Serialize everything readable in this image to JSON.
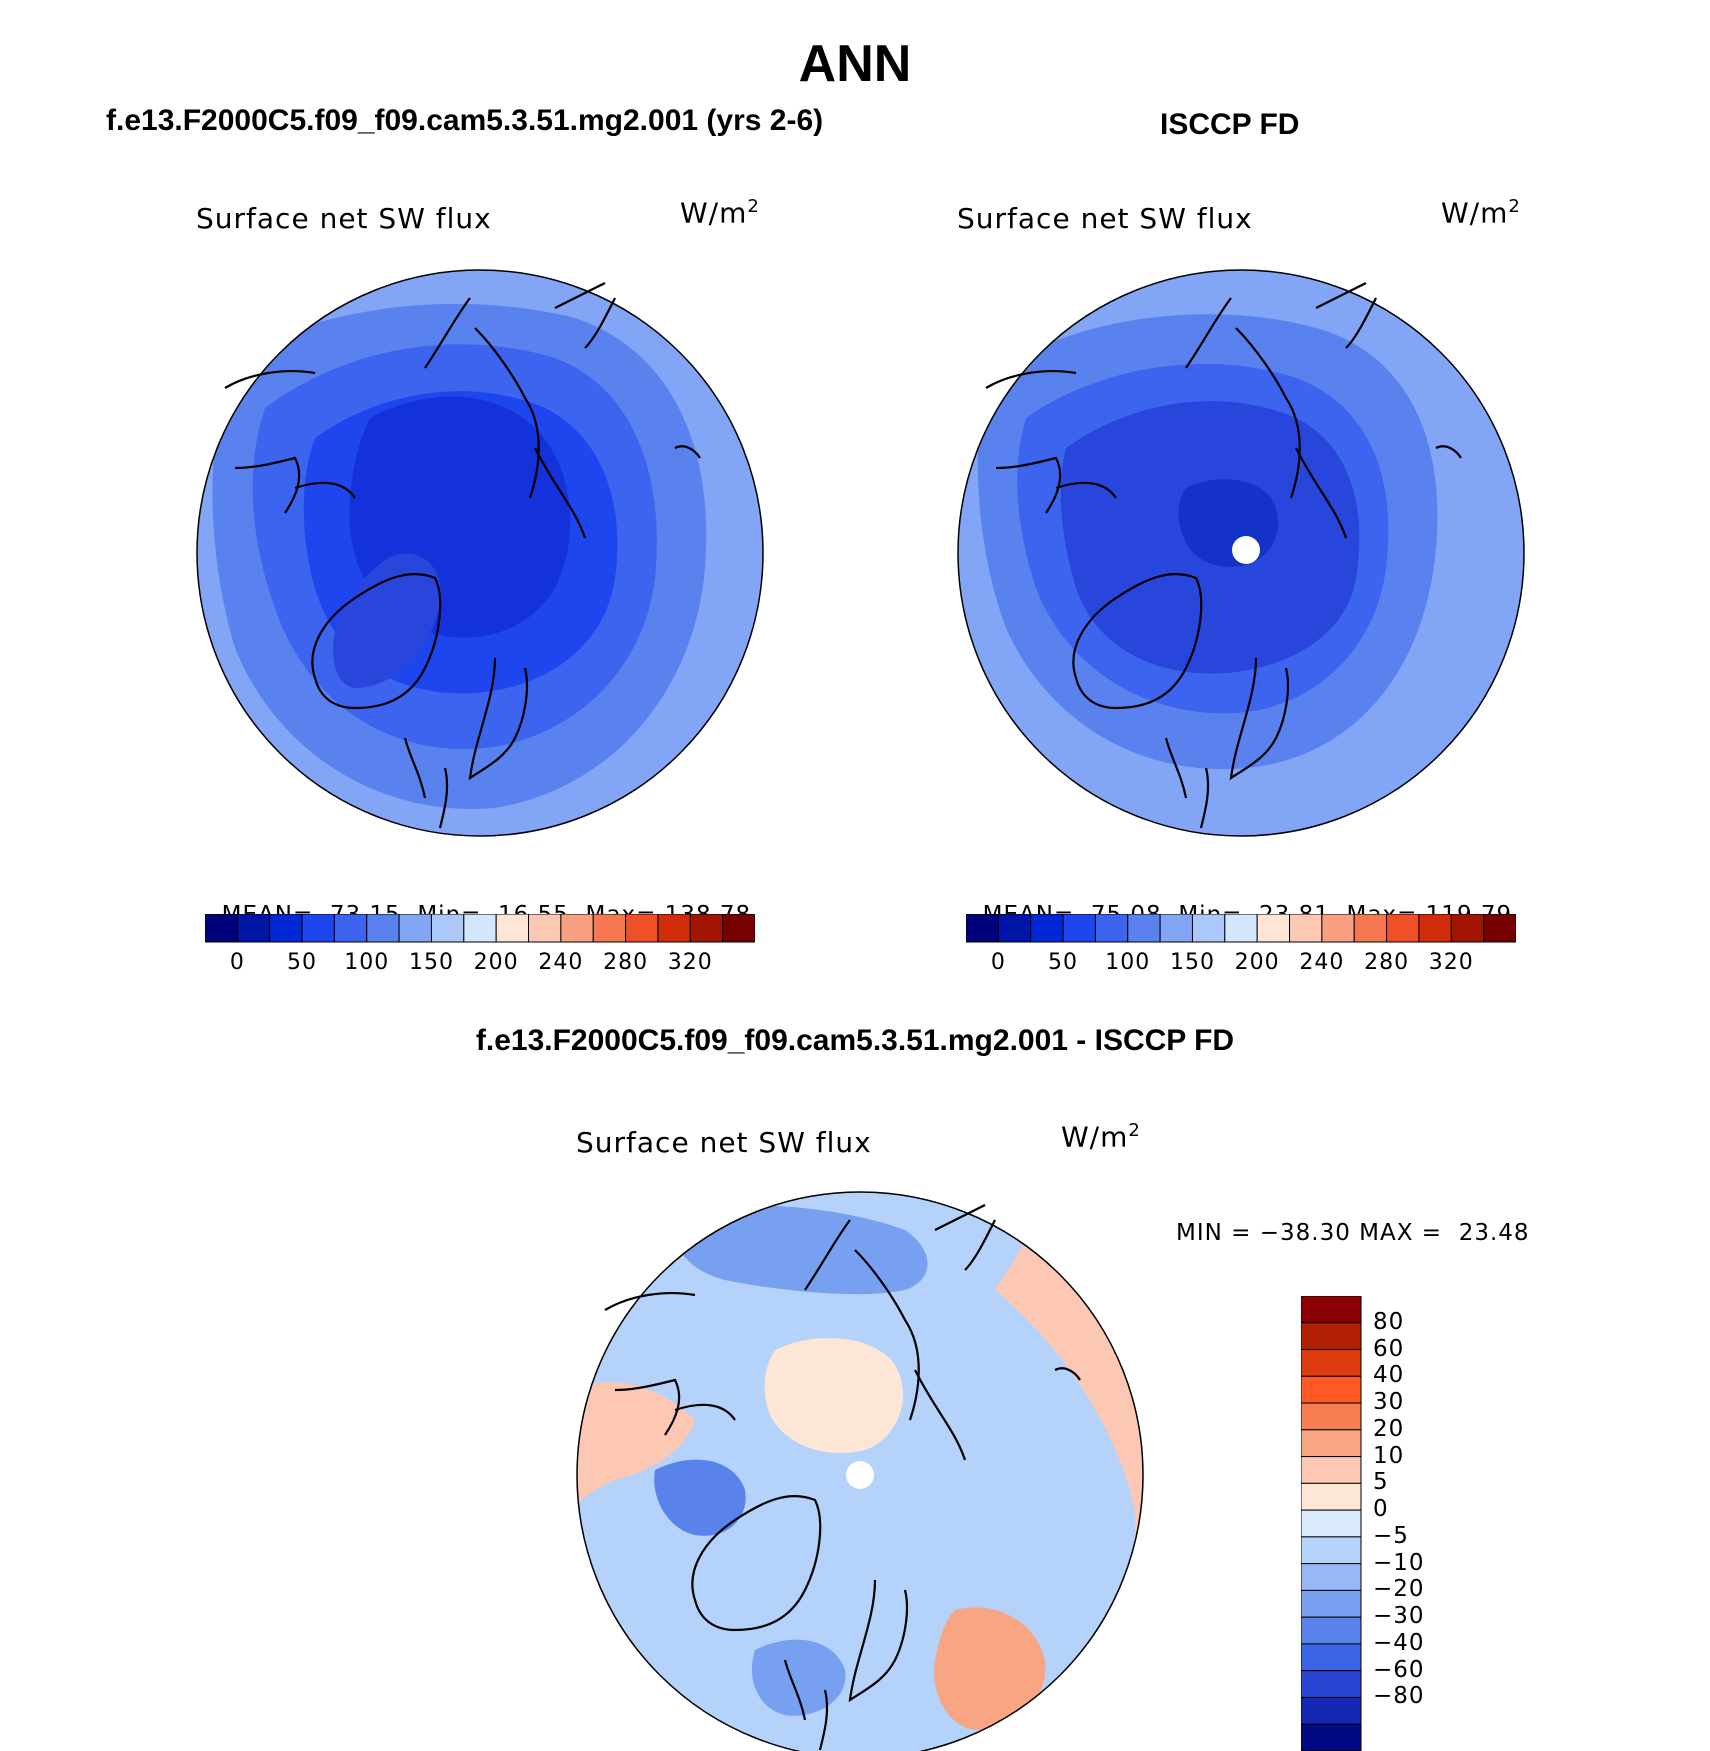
{
  "title": "ANN",
  "left_header": "f.e13.F2000C5.f09_f09.cam5.3.51.mg2.001 (yrs 2-6)",
  "right_header": "ISCCP FD",
  "diff_header": "f.e13.F2000C5.f09_f09.cam5.3.51.mg2.001 - ISCCP FD",
  "panels": {
    "model": {
      "title": "Surface net SW flux",
      "units_base": "W/m",
      "units_exp": "2",
      "stats": {
        "mean_label": "MEAN=",
        "mean": "73.15",
        "min_label": "Min=",
        "min": "16.55",
        "max_label": "Max=",
        "max": "138.78"
      }
    },
    "obs": {
      "title": "Surface net SW flux",
      "units_base": "W/m",
      "units_exp": "2",
      "stats": {
        "mean_label": "MEAN=",
        "mean": "75.08",
        "min_label": "Min=",
        "min": "23.81",
        "max_label": "Max=",
        "max": "119.79"
      }
    },
    "diff": {
      "title": "Surface net SW flux",
      "units_base": "W/m",
      "units_exp": "2",
      "minmax": "MIN = −38.30 MAX =  23.48"
    }
  },
  "colorbar_abs": {
    "colors": [
      "#00007f",
      "#0014a8",
      "#0028d4",
      "#1e46ee",
      "#3c64ee",
      "#5a82ee",
      "#82a5f5",
      "#aac8fa",
      "#d2e6fc",
      "#fde6d6",
      "#fcc8b4",
      "#faa082",
      "#f57850",
      "#f05028",
      "#d22d0a",
      "#a01400",
      "#780000"
    ],
    "tick_labels": [
      "0",
      "50",
      "100",
      "150",
      "200",
      "240",
      "280",
      "320"
    ]
  },
  "colorbar_diff": {
    "colors_top_to_bottom": [
      "#8b0000",
      "#b41e05",
      "#dc3c0f",
      "#ff5a23",
      "#f87d50",
      "#f7a582",
      "#fcc8b4",
      "#fde6d6",
      "#d8eafc",
      "#b4d2fa",
      "#96b9f5",
      "#78a0f0",
      "#5a82eb",
      "#3c64e6",
      "#2846d2",
      "#1428b4",
      "#000a82"
    ],
    "tick_labels": [
      "80",
      "60",
      "40",
      "30",
      "20",
      "10",
      "5",
      "0",
      "−5",
      "−10",
      "−20",
      "−30",
      "−40",
      "−60",
      "−80"
    ]
  },
  "map_colors": {
    "model_levels": [
      "#1e46ee",
      "#3050f0",
      "#3c64ee",
      "#5a82ee",
      "#82a5f5"
    ],
    "obs_levels": [
      "#2846dc",
      "#3050f0",
      "#3c64ee",
      "#5a82ee",
      "#82a5f5"
    ],
    "diff_base": "#b4d2fa",
    "diff_warm": "#fcc8b4",
    "diff_warm2": "#fde6d6",
    "diff_cool": "#78a0f0",
    "diff_cool2": "#5a82eb",
    "pole_hole": "#ffffff"
  }
}
